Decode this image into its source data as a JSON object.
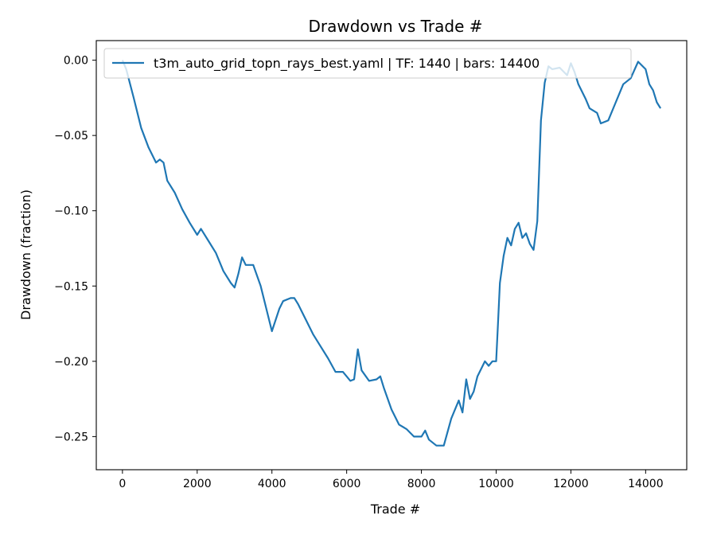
{
  "chart_data": {
    "type": "line",
    "title": "Drawdown vs Trade #",
    "xlabel": "Trade #",
    "ylabel": "Drawdown (fraction)",
    "xlim": [
      -700,
      15100
    ],
    "ylim": [
      -0.272,
      0.013
    ],
    "x_ticks": [
      0,
      2000,
      4000,
      6000,
      8000,
      10000,
      12000,
      14000
    ],
    "x_tick_labels": [
      "0",
      "2000",
      "4000",
      "6000",
      "8000",
      "10000",
      "12000",
      "14000"
    ],
    "y_ticks": [
      0.0,
      -0.05,
      -0.1,
      -0.15,
      -0.2,
      -0.25
    ],
    "y_tick_labels": [
      "0.00",
      "−0.05",
      "−0.10",
      "−0.15",
      "−0.20",
      "−0.25"
    ],
    "grid": false,
    "legend_position": "top-left",
    "series": [
      {
        "name": "t3m_auto_grid_topn_rays_best.yaml | TF: 1440 | bars: 14400",
        "color": "#1f77b4",
        "x": [
          0,
          100,
          300,
          500,
          700,
          900,
          1000,
          1100,
          1200,
          1400,
          1600,
          1800,
          2000,
          2100,
          2300,
          2500,
          2700,
          2900,
          3000,
          3100,
          3200,
          3300,
          3500,
          3700,
          3900,
          4000,
          4200,
          4300,
          4500,
          4600,
          4700,
          4900,
          5100,
          5300,
          5500,
          5700,
          5900,
          6100,
          6200,
          6300,
          6400,
          6600,
          6800,
          6900,
          7000,
          7200,
          7400,
          7600,
          7800,
          8000,
          8100,
          8200,
          8400,
          8600,
          8800,
          9000,
          9100,
          9200,
          9300,
          9400,
          9500,
          9700,
          9800,
          9900,
          10000,
          10050,
          10100,
          10200,
          10300,
          10400,
          10500,
          10600,
          10700,
          10800,
          10900,
          11000,
          11100,
          11200,
          11300,
          11400,
          11500,
          11700,
          11900,
          12000,
          12100,
          12200,
          12400,
          12500,
          12700,
          12800,
          13000,
          13200,
          13400,
          13600,
          13800,
          14000,
          14100,
          14200,
          14300,
          14400
        ],
        "values": [
          0.0,
          -0.006,
          -0.025,
          -0.045,
          -0.058,
          -0.068,
          -0.066,
          -0.068,
          -0.08,
          -0.088,
          -0.099,
          -0.108,
          -0.116,
          -0.112,
          -0.12,
          -0.128,
          -0.14,
          -0.148,
          -0.151,
          -0.142,
          -0.131,
          -0.136,
          -0.136,
          -0.15,
          -0.17,
          -0.18,
          -0.165,
          -0.16,
          -0.158,
          -0.158,
          -0.162,
          -0.172,
          -0.182,
          -0.19,
          -0.198,
          -0.207,
          -0.207,
          -0.213,
          -0.212,
          -0.192,
          -0.206,
          -0.213,
          -0.212,
          -0.21,
          -0.218,
          -0.232,
          -0.242,
          -0.245,
          -0.25,
          -0.25,
          -0.246,
          -0.252,
          -0.256,
          -0.256,
          -0.238,
          -0.226,
          -0.234,
          -0.212,
          -0.225,
          -0.22,
          -0.21,
          -0.2,
          -0.203,
          -0.2,
          -0.2,
          -0.175,
          -0.148,
          -0.13,
          -0.118,
          -0.123,
          -0.112,
          -0.108,
          -0.118,
          -0.115,
          -0.122,
          -0.126,
          -0.107,
          -0.04,
          -0.015,
          -0.004,
          -0.006,
          -0.005,
          -0.01,
          -0.002,
          -0.008,
          -0.016,
          -0.026,
          -0.032,
          -0.035,
          -0.042,
          -0.04,
          -0.028,
          -0.016,
          -0.012,
          -0.001,
          -0.006,
          -0.016,
          -0.02,
          -0.028,
          -0.032
        ]
      }
    ]
  }
}
